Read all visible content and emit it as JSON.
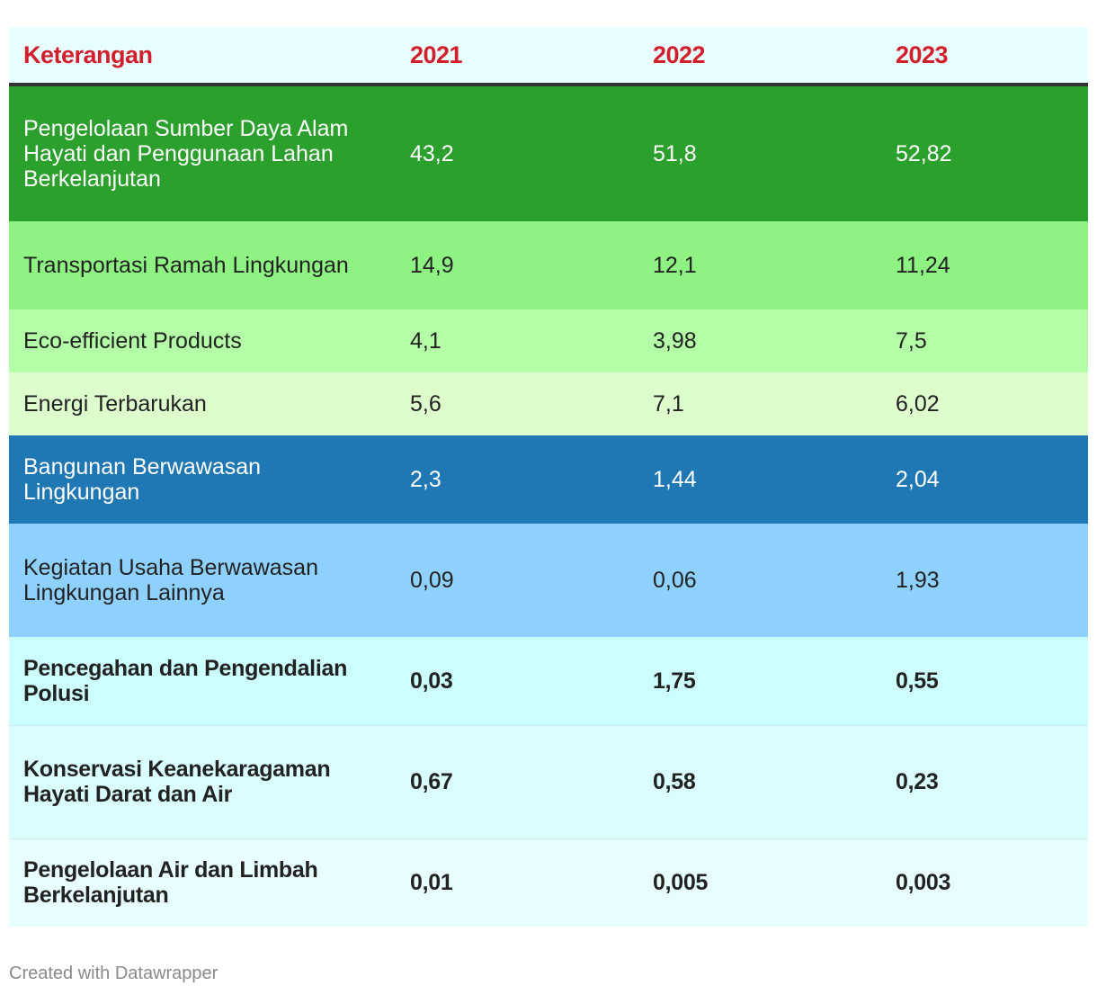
{
  "chart_data": {
    "type": "table",
    "columns": [
      "Keterangan",
      "2021",
      "2022",
      "2023"
    ],
    "rows": [
      {
        "label": "Pengelolaan Sumber Daya Alam Hayati dan Penggunaan Lahan Berkelanjutan",
        "values": [
          "43,2",
          "51,8",
          "52,82"
        ],
        "bg": "#2ca02c",
        "text": "#ffffff",
        "bold": false
      },
      {
        "label": "Transportasi Ramah Lingkungan",
        "values": [
          "14,9",
          "12,1",
          "11,24"
        ],
        "bg": "#8ef383",
        "text": "#222222",
        "bold": false
      },
      {
        "label": "Eco-efficient Products",
        "values": [
          "4,1",
          "3,98",
          "7,5"
        ],
        "bg": "#b3fea6",
        "text": "#222222",
        "bold": false
      },
      {
        "label": "Energi Terbarukan",
        "values": [
          "5,6",
          "7,1",
          "6,02"
        ],
        "bg": "#defdcd",
        "text": "#222222",
        "bold": false
      },
      {
        "label": "Bangunan Berwawasan Lingkungan",
        "values": [
          "2,3",
          "1,44",
          "2,04"
        ],
        "bg": "#1f77b4",
        "text": "#ffffff",
        "bold": false
      },
      {
        "label": "Kegiatan Usaha Berwawasan Lingkungan Lainnya",
        "values": [
          "0,09",
          "0,06",
          "1,93"
        ],
        "bg": "#8fd1fe",
        "text": "#222222",
        "bold": false
      },
      {
        "label": "Pencegahan dan Pengendalian Polusi",
        "values": [
          "0,03",
          "1,75",
          "0,55"
        ],
        "bg": "#ccfefe",
        "text": "#222222",
        "bold": true
      },
      {
        "label": "Konservasi Keanekaragaman Hayati Darat dan Air",
        "values": [
          "0,67",
          "0,58",
          "0,23"
        ],
        "bg": "#dafefe",
        "text": "#222222",
        "bold": true
      },
      {
        "label": "Pengelolaan Air dan Limbah Berkelanjutan",
        "values": [
          "0,01",
          "0,005",
          "0,003"
        ],
        "bg": "#e8fefe",
        "text": "#222222",
        "bold": true
      }
    ]
  },
  "header_color": "#d11f2c",
  "footer": "Created with Datawrapper"
}
